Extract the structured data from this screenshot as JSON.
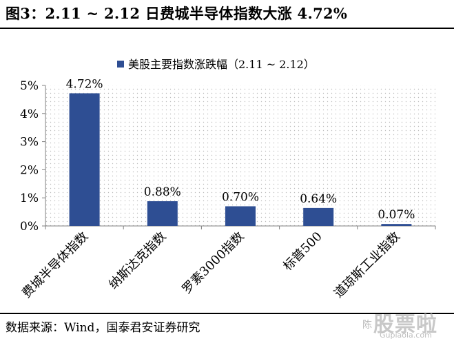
{
  "figure": {
    "title": "图3：2.11 ~ 2.12 日费城半导体指数大涨 4.72%",
    "source": "数据来源：Wind，国泰君安证券研究"
  },
  "watermark": {
    "small": "陈",
    "big": "股票啦",
    "url": "Gupiaola.com"
  },
  "colors": {
    "bar": "#2e4e93",
    "axis": "#7f7f7f",
    "dots": "#c8c8c8"
  },
  "chart_data": {
    "type": "bar",
    "legend": "美股主要指数涨跌幅（2.11 ~ 2.12）",
    "legend_position": "top-center",
    "categories": [
      "费城半导体指数",
      "纳斯达克指数",
      "罗素3000指数",
      "标普500",
      "道琼斯工业指数"
    ],
    "values": [
      4.72,
      0.88,
      0.7,
      0.64,
      0.07
    ],
    "data_labels": [
      "4.72%",
      "0.88%",
      "0.70%",
      "0.64%",
      "0.07%"
    ],
    "ylim": [
      0,
      5
    ],
    "yticks": [
      0,
      1,
      2,
      3,
      4,
      5
    ],
    "ytick_labels": [
      "0%",
      "1%",
      "2%",
      "3%",
      "4%",
      "5%"
    ],
    "grid": false
  }
}
